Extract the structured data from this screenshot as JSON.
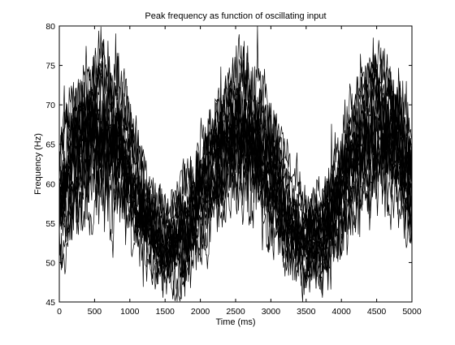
{
  "chart_data": {
    "type": "line",
    "title": "Peak frequency as function of oscillating input",
    "xlabel": "Time (ms)",
    "ylabel": "Frequency (Hz)",
    "xlim": [
      0,
      5000
    ],
    "ylim": [
      45,
      80
    ],
    "xticks": [
      0,
      500,
      1000,
      1500,
      2000,
      2500,
      3000,
      3500,
      4000,
      4500,
      5000
    ],
    "yticks": [
      45,
      50,
      55,
      60,
      65,
      70,
      75,
      80
    ],
    "grid": false,
    "legend": "none",
    "line_color": "#000000",
    "sample_step_ms": 10,
    "trace_count": 20,
    "envelope": {
      "x": [
        0,
        250,
        500,
        750,
        1000,
        1250,
        1500,
        1750,
        2000,
        2250,
        2500,
        2750,
        3000,
        3250,
        3500,
        3750,
        4000,
        4250,
        4500,
        4750,
        5000
      ],
      "mean": [
        57,
        63,
        66,
        65.5,
        61,
        55,
        51.5,
        53,
        57.5,
        63,
        66.5,
        65,
        61,
        55,
        52,
        53,
        58,
        64,
        67,
        65,
        59
      ],
      "spread": [
        5,
        6,
        6.5,
        6,
        5,
        4,
        3.5,
        4,
        4.5,
        5,
        5.5,
        5,
        5,
        4,
        3.5,
        4,
        5,
        5.5,
        6,
        5.5,
        5
      ]
    }
  }
}
